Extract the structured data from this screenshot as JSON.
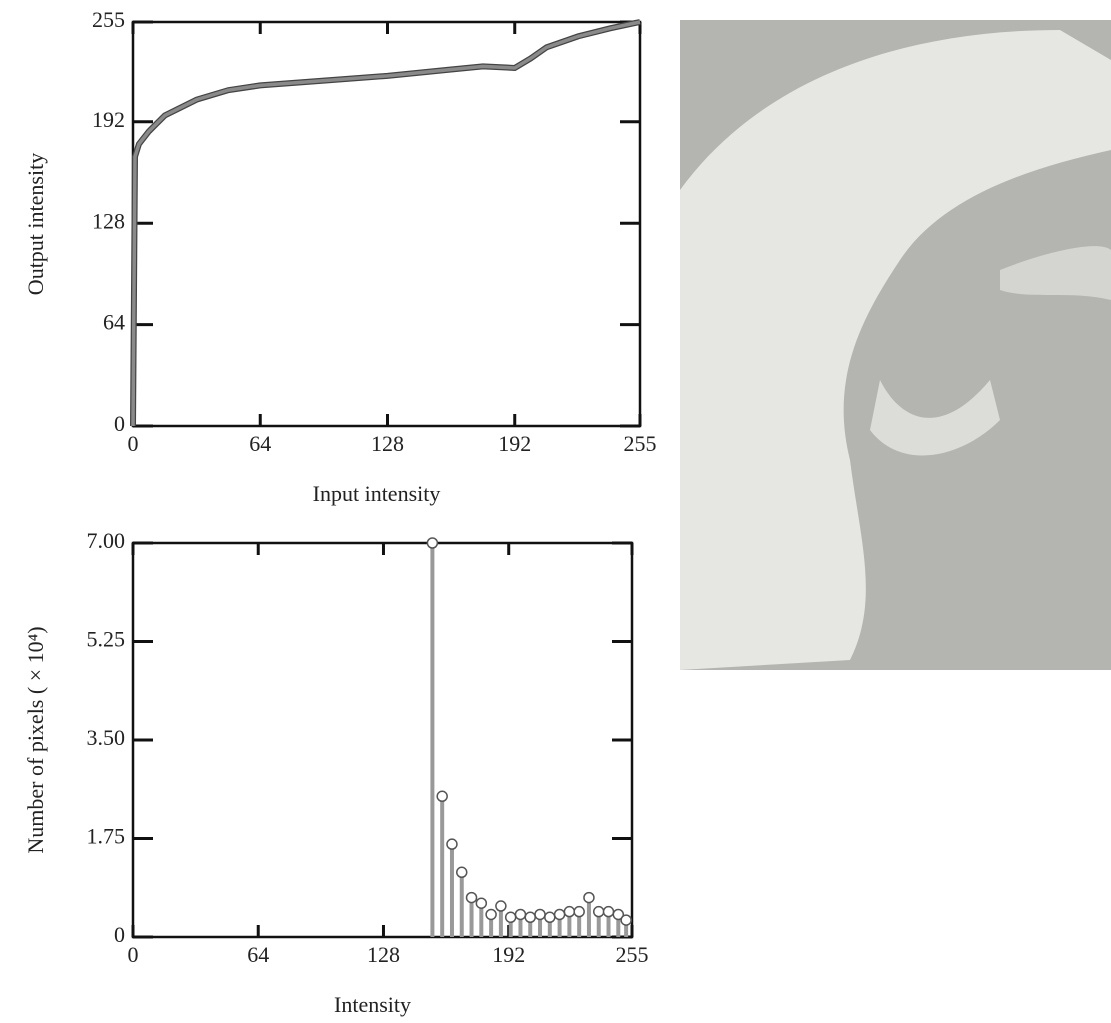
{
  "chart_data": [
    {
      "type": "line",
      "xlabel": "Input intensity",
      "ylabel": "Output intensity",
      "xlim": [
        0,
        255
      ],
      "ylim": [
        0,
        255
      ],
      "xticks": [
        0,
        64,
        128,
        192,
        255
      ],
      "yticks": [
        0,
        64,
        128,
        192,
        255
      ],
      "series": [
        {
          "color": "#8a8a8a",
          "x": [
            0,
            1,
            3,
            8,
            16,
            32,
            48,
            64,
            96,
            128,
            160,
            176,
            192,
            200,
            208,
            224,
            240,
            255
          ],
          "values": [
            0,
            170,
            178,
            186,
            196,
            206,
            212,
            215,
            218,
            221,
            225,
            227,
            226,
            232,
            239,
            246,
            251,
            255
          ]
        }
      ]
    },
    {
      "type": "stem",
      "xlabel": "Intensity",
      "ylabel": "Number of pixels ( × 10⁴)",
      "xlim": [
        0,
        255
      ],
      "ylim": [
        0,
        7
      ],
      "xticks": [
        0,
        64,
        128,
        192,
        255
      ],
      "yticks": [
        0,
        1.75,
        {
          "value": 3.5,
          "label": "3.50"
        },
        5.25,
        {
          "value": 7,
          "label": "7.00"
        }
      ],
      "series": [
        {
          "color": "#999999",
          "x": [
            153,
            158,
            163,
            168,
            173,
            178,
            183,
            188,
            193,
            198,
            203,
            208,
            213,
            218,
            223,
            228,
            233,
            238,
            243,
            248,
            252
          ],
          "values": [
            7.0,
            2.5,
            1.65,
            1.15,
            0.7,
            0.6,
            0.4,
            0.55,
            0.35,
            0.4,
            0.35,
            0.4,
            0.35,
            0.4,
            0.45,
            0.45,
            0.7,
            0.45,
            0.45,
            0.4,
            0.3
          ]
        }
      ]
    }
  ]
}
